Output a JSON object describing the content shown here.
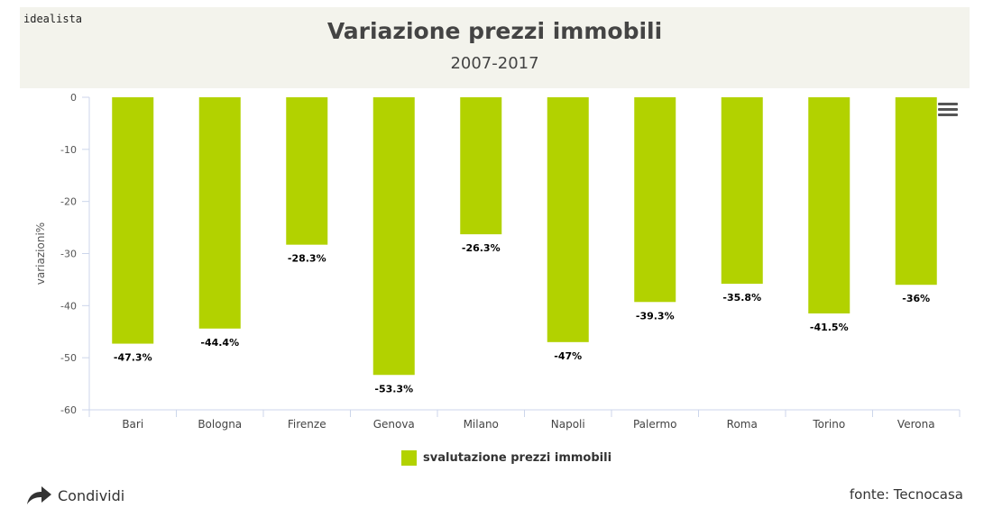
{
  "header": {
    "brand": "idealista"
  },
  "footer": {
    "share_label": "Condividi",
    "source": "fonte: Tecnocasa"
  },
  "icons": {
    "menu": "hamburger-menu-icon",
    "share": "share-arrow-icon"
  },
  "colors": {
    "bar": "#b2d200",
    "header_background": "#f3f3ec"
  },
  "chart_data": {
    "type": "bar",
    "title": "Variazione prezzi immobili",
    "subtitle": "2007-2017",
    "xlabel": "",
    "ylabel": "variazioni%",
    "ylim": [
      -60,
      0
    ],
    "yticks": [
      0,
      -10,
      -20,
      -30,
      -40,
      -50,
      -60
    ],
    "categories": [
      "Bari",
      "Bologna",
      "Firenze",
      "Genova",
      "Milano",
      "Napoli",
      "Palermo",
      "Roma",
      "Torino",
      "Verona"
    ],
    "series": [
      {
        "name": "svalutazione prezzi immobili",
        "values": [
          -47.3,
          -44.4,
          -28.3,
          -53.3,
          -26.3,
          -47,
          -39.3,
          -35.8,
          -41.5,
          -36
        ],
        "labels": [
          "-47.3%",
          "-44.4%",
          "-28.3%",
          "-53.3%",
          "-26.3%",
          "-47%",
          "-39.3%",
          "-35.8%",
          "-41.5%",
          "-36%"
        ]
      }
    ],
    "grid": false,
    "legend_position": "bottom-center"
  }
}
